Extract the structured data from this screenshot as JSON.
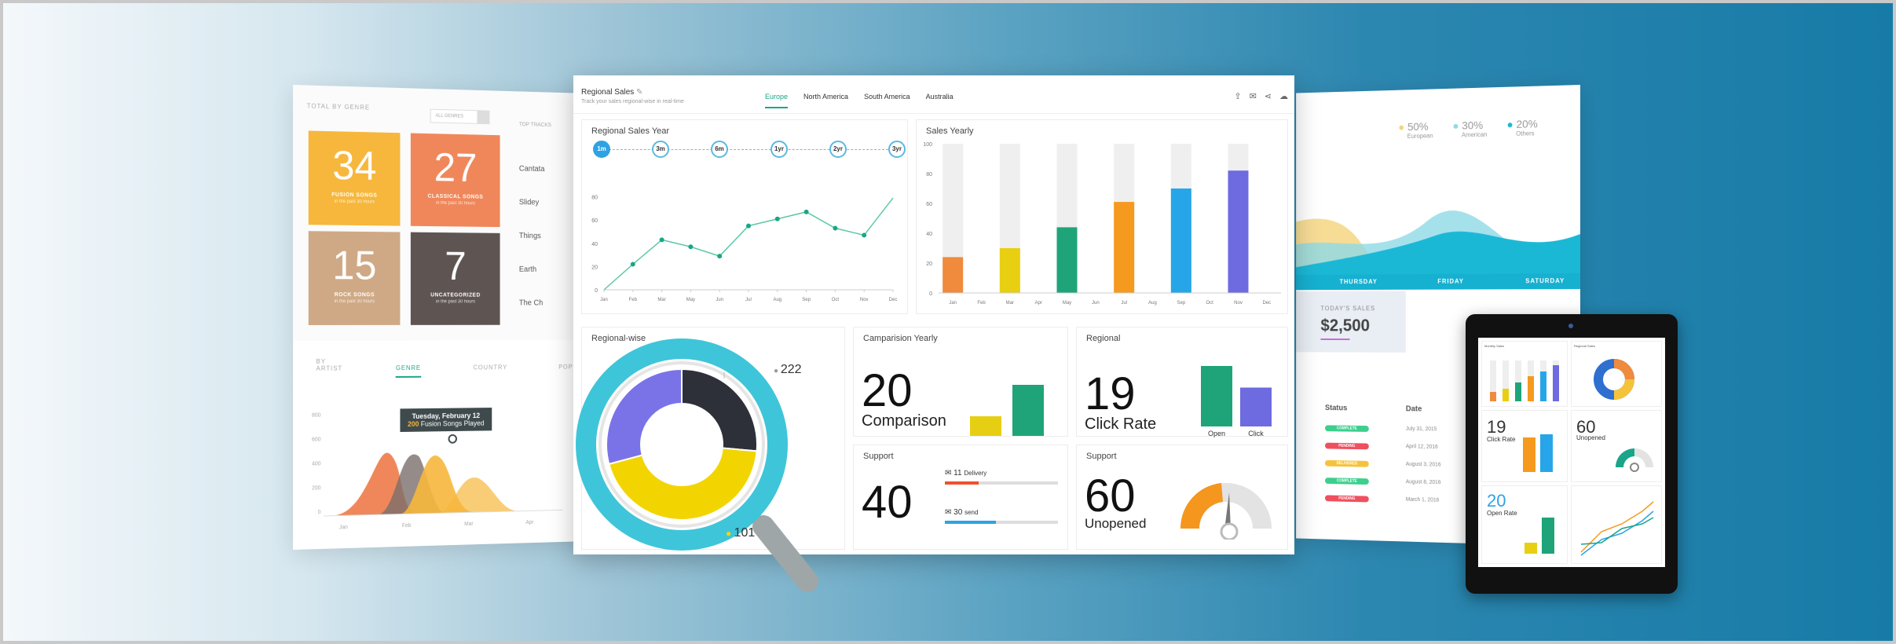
{
  "left_panel": {
    "header": "TOTAL BY GENRE",
    "filter_value": "ALL GENRES",
    "side_heading": "TOP TRACKS",
    "side_items": [
      "Cantata",
      "Slidey",
      "Things",
      "Earth",
      "The Ch"
    ],
    "tiles": [
      {
        "num": "34",
        "label": "FUSION SONGS",
        "sub": "in the past 30 hours",
        "color": "#f6b73c"
      },
      {
        "num": "27",
        "label": "CLASSICAL SONGS",
        "sub": "in the past 30 hours",
        "color": "#f0875a"
      },
      {
        "num": "15",
        "label": "ROCK SONGS",
        "sub": "in the past 30 hours",
        "color": "#cfa985"
      },
      {
        "num": "7",
        "label": "UNCATEGORIZED",
        "sub": "in the past 30 hours",
        "color": "#5e5552"
      }
    ],
    "tabs": [
      "BY ARTIST",
      "GENRE",
      "COUNTRY",
      "POPULAR"
    ],
    "tooltip_date": "Tuesday, February 12",
    "tooltip_value": "200",
    "tooltip_text": "Fusion Songs Played",
    "y_ticks": [
      "800",
      "600",
      "400",
      "200",
      "0"
    ],
    "x_ticks": [
      "Jan",
      "Feb",
      "Mar",
      "Apr"
    ]
  },
  "main": {
    "title": "Regional Sales",
    "subtitle": "Track your sales regional-wise in real-time",
    "tabs": [
      "Europe",
      "North America",
      "South America",
      "Australia"
    ],
    "active_tab": "Europe",
    "accent": "#1aa58a",
    "regional_sales_year": {
      "title": "Regional Sales Year",
      "ranges": [
        "1m",
        "3m",
        "6m",
        "1yr",
        "2yr",
        "3yr"
      ]
    },
    "sales_yearly_title": "Sales Yearly",
    "regional_wise_title": "Regional-wise",
    "donut_labels": [
      "222",
      "101"
    ],
    "comparison": {
      "title": "Camparision Yearly",
      "value": "20",
      "label": "Comparison"
    },
    "regional": {
      "title": "Regional",
      "value": "19",
      "label": "Click Rate",
      "bar_labels": [
        "Open",
        "Click"
      ]
    },
    "support1": {
      "title": "Support",
      "value": "40",
      "items": [
        {
          "count": "11",
          "label": "Delivery"
        },
        {
          "count": "30",
          "label": "send"
        }
      ]
    },
    "support2": {
      "title": "Support",
      "value": "60",
      "label": "Unopened"
    }
  },
  "right_panel": {
    "legend": [
      {
        "pct": "50%",
        "label": "European",
        "color": "#f4d37a"
      },
      {
        "pct": "30%",
        "label": "American",
        "color": "#8fd9e6"
      },
      {
        "pct": "20%",
        "label": "Others",
        "color": "#1bb8d6"
      }
    ],
    "days": [
      "THURSDAY",
      "FRIDAY",
      "SATURDAY"
    ],
    "today_sales_label": "TODAY'S SALES",
    "today_sales_value": "$2,500",
    "table_headers": [
      "Status",
      "Date"
    ],
    "rows": [
      {
        "status": "COMPLETE",
        "color": "#3ccf8e",
        "date": "July 31, 2015"
      },
      {
        "status": "PENDING",
        "color": "#ef4f5f",
        "date": "April 12, 2016"
      },
      {
        "status": "DELIVERED",
        "color": "#f5c33b",
        "date": "August 3, 2016"
      },
      {
        "status": "COMPLETE",
        "color": "#3ccf8e",
        "date": "August 8, 2016"
      },
      {
        "status": "PENDING",
        "color": "#ef4f5f",
        "date": "March 1, 2016"
      }
    ]
  },
  "tablet": {
    "card1": "Monthly Sales",
    "card2": "Regional Sales",
    "v1": "19",
    "l1": "Click Rate",
    "v2": "60",
    "l2": "Unopened",
    "v3": "20",
    "l3": "Open Rate"
  },
  "chart_data": [
    {
      "type": "line",
      "title": "Regional Sales Year",
      "categories": [
        "Jan",
        "Feb",
        "Mar",
        "May",
        "Jun",
        "Jul",
        "Aug",
        "Sep",
        "Oct",
        "Nov",
        "Dec"
      ],
      "values": [
        0,
        22,
        43,
        37,
        29,
        55,
        61,
        67,
        53,
        47,
        79
      ],
      "ylim": [
        0,
        100
      ],
      "y_ticks": [
        0,
        20,
        40,
        60,
        80
      ],
      "color": "#5cc9a7"
    },
    {
      "type": "bar",
      "title": "Sales Yearly",
      "categories": [
        "Jan",
        "Feb",
        "Mar",
        "Apr",
        "May",
        "Jun",
        "Jul",
        "Aug",
        "Sep",
        "Oct",
        "Nov",
        "Dec"
      ],
      "values": [
        24,
        null,
        30,
        null,
        44,
        null,
        61,
        null,
        70,
        null,
        82,
        null
      ],
      "colors": [
        "#f08a3c",
        null,
        "#e8cf12",
        null,
        "#1fa47a",
        null,
        "#f59a1f",
        null,
        "#26a6e8",
        null,
        "#6e6be0",
        null
      ],
      "ylim": [
        0,
        100
      ],
      "y_ticks": [
        0,
        20,
        40,
        60,
        80,
        100
      ]
    },
    {
      "type": "pie",
      "title": "Regional-wise",
      "values": [
        222,
        101
      ],
      "colors": [
        "#7a73e8",
        "#2e3039",
        "#f2d500"
      ]
    },
    {
      "type": "bar",
      "title": "Camparision Yearly",
      "values": [
        25,
        65
      ],
      "colors": [
        "#e6cf12",
        "#1fa47a"
      ]
    },
    {
      "type": "bar",
      "title": "Regional",
      "categories": [
        "Open",
        "Click"
      ],
      "values": [
        70,
        45
      ],
      "colors": [
        "#1fa47a",
        "#6e6be0"
      ]
    }
  ]
}
